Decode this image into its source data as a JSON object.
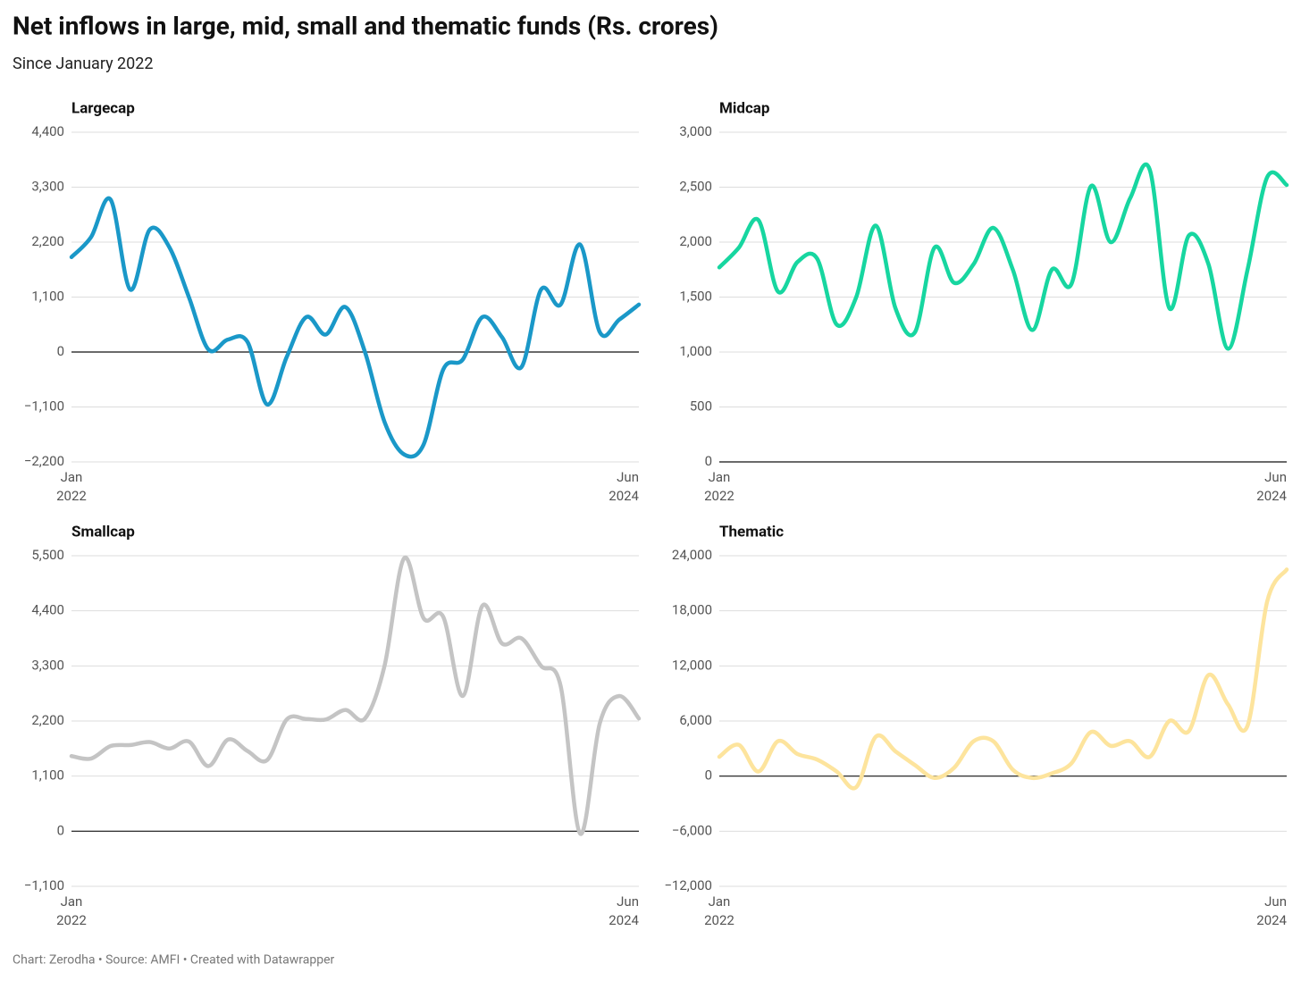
{
  "title": "Net inflows in large, mid, small and thematic funds (Rs. crores)",
  "subtitle": "Since January 2022",
  "source": "Chart: Zerodha • Source: AMFI • Created with Datawrapper",
  "chart_data": [
    {
      "type": "line",
      "title": "Largecap",
      "color": "#1a98c8",
      "categories": [
        "Jan 2022",
        null,
        null,
        null,
        null,
        null,
        null,
        null,
        null,
        null,
        null,
        null,
        null,
        null,
        null,
        null,
        null,
        null,
        null,
        null,
        null,
        null,
        null,
        null,
        null,
        null,
        null,
        null,
        null,
        "Jun 2024"
      ],
      "values": [
        1900,
        2300,
        3050,
        1250,
        2450,
        2100,
        1100,
        50,
        250,
        200,
        -1050,
        -100,
        700,
        350,
        900,
        0,
        -1400,
        -2050,
        -1850,
        -350,
        -150,
        700,
        300,
        -300,
        1250,
        950,
        2150,
        400,
        650,
        950
      ],
      "ylim": [
        -2200,
        4400
      ],
      "yticks": [
        {
          "value": -2200,
          "label": "−2,200"
        },
        {
          "value": -1100,
          "label": "−1,100"
        },
        0,
        {
          "value": 1100,
          "label": "1,100"
        },
        {
          "value": 2200,
          "label": "2,200"
        },
        {
          "value": 3300,
          "label": "3,300"
        },
        {
          "value": 4400,
          "label": "4,400"
        }
      ],
      "grid": true
    },
    {
      "type": "line",
      "title": "Midcap",
      "color": "#17d6a0",
      "categories": [
        "Jan 2022",
        null,
        null,
        null,
        null,
        null,
        null,
        null,
        null,
        null,
        null,
        null,
        null,
        null,
        null,
        null,
        null,
        null,
        null,
        null,
        null,
        null,
        null,
        null,
        null,
        null,
        null,
        null,
        null,
        "Jun 2024"
      ],
      "values": [
        1770,
        1950,
        2200,
        1550,
        1820,
        1850,
        1250,
        1500,
        2150,
        1400,
        1180,
        1950,
        1630,
        1800,
        2130,
        1750,
        1200,
        1750,
        1620,
        2510,
        2000,
        2400,
        2660,
        1400,
        2060,
        1800,
        1030,
        1750,
        2590,
        2520
      ],
      "ylim": [
        0,
        3000
      ],
      "yticks": [
        0,
        500,
        {
          "value": 1000,
          "label": "1,000"
        },
        {
          "value": 1500,
          "label": "1,500"
        },
        {
          "value": 2000,
          "label": "2,000"
        },
        {
          "value": 2500,
          "label": "2,500"
        },
        {
          "value": 3000,
          "label": "3,000"
        }
      ],
      "grid": true
    },
    {
      "type": "line",
      "title": "Smallcap",
      "color": "#c4c4c4",
      "categories": [
        "Jan 2022",
        null,
        null,
        null,
        null,
        null,
        null,
        null,
        null,
        null,
        null,
        null,
        null,
        null,
        null,
        null,
        null,
        null,
        null,
        null,
        null,
        null,
        null,
        null,
        null,
        null,
        null,
        null,
        null,
        "Jun 2024"
      ],
      "values": [
        1500,
        1450,
        1700,
        1720,
        1780,
        1650,
        1790,
        1300,
        1830,
        1600,
        1420,
        2230,
        2240,
        2230,
        2420,
        2250,
        3300,
        5450,
        4250,
        4280,
        2700,
        4500,
        3750,
        3850,
        3300,
        2900,
        -50,
        2150,
        2700,
        2250
      ],
      "ylim": [
        -1100,
        5500
      ],
      "yticks": [
        {
          "value": -1100,
          "label": "−1,100"
        },
        0,
        {
          "value": 1100,
          "label": "1,100"
        },
        {
          "value": 2200,
          "label": "2,200"
        },
        {
          "value": 3300,
          "label": "3,300"
        },
        {
          "value": 4400,
          "label": "4,400"
        },
        {
          "value": 5500,
          "label": "5,500"
        }
      ],
      "grid": true
    },
    {
      "type": "line",
      "title": "Thematic",
      "color": "#fde49d",
      "categories": [
        "Jan 2022",
        null,
        null,
        null,
        null,
        null,
        null,
        null,
        null,
        null,
        null,
        null,
        null,
        null,
        null,
        null,
        null,
        null,
        null,
        null,
        null,
        null,
        null,
        null,
        null,
        null,
        null,
        null,
        null,
        "Jun 2024"
      ],
      "values": [
        2100,
        3400,
        500,
        3800,
        2400,
        1800,
        500,
        -1200,
        4300,
        2700,
        1200,
        -200,
        900,
        3800,
        3800,
        700,
        -200,
        300,
        1400,
        4800,
        3300,
        3800,
        2100,
        6000,
        4900,
        11000,
        7800,
        5500,
        19000,
        22500
      ],
      "ylim": [
        -12000,
        24000
      ],
      "yticks": [
        {
          "value": -12000,
          "label": "−12,000"
        },
        {
          "value": -6000,
          "label": "−6,000"
        },
        0,
        {
          "value": 6000,
          "label": "6,000"
        },
        {
          "value": 12000,
          "label": "12,000"
        },
        {
          "value": 18000,
          "label": "18,000"
        },
        {
          "value": 24000,
          "label": "24,000"
        }
      ],
      "grid": true
    }
  ]
}
